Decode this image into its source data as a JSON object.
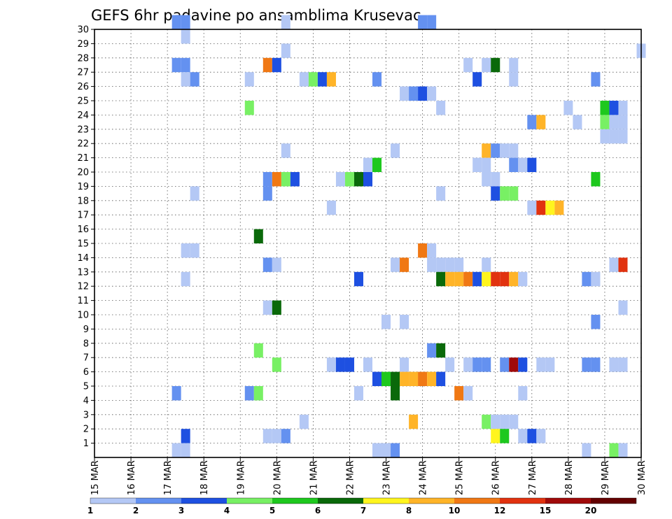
{
  "chart_data": {
    "type": "heatmap",
    "title": "GEFS 6hr padavine po ansamblima Krusevac",
    "xlabel": "",
    "ylabel": "",
    "x_tick_labels": [
      "15 MAR",
      "16 MAR",
      "17 MAR",
      "18 MAR",
      "19 MAR",
      "20 MAR",
      "21 MAR",
      "22 MAR",
      "23 MAR",
      "24 MAR",
      "25 MAR",
      "26 MAR",
      "27 MAR",
      "28 MAR",
      "29 MAR",
      "30 MAR"
    ],
    "y_tick_labels": [
      "1",
      "2",
      "3",
      "4",
      "5",
      "6",
      "7",
      "8",
      "9",
      "10",
      "11",
      "12",
      "13",
      "14",
      "15",
      "16",
      "17",
      "18",
      "19",
      "20",
      "21",
      "22",
      "23",
      "24",
      "25",
      "26",
      "27",
      "28",
      "29",
      "30"
    ],
    "grid": true,
    "legend_breaks": [
      "1",
      "2",
      "3",
      "4",
      "5",
      "6",
      "7",
      "8",
      "10",
      "12",
      "15",
      "20"
    ],
    "palette": [
      "#b4c8f5",
      "#6491f0",
      "#1e50e1",
      "#78f064",
      "#1ec81e",
      "#0a690a",
      "#fff51e",
      "#ffb428",
      "#f07814",
      "#e1320f",
      "#a00a0a",
      "#640000"
    ],
    "cells": [
      {
        "t": "17.25",
        "m": 30,
        "c": 1
      },
      {
        "t": "17.5",
        "m": 30,
        "c": 1
      },
      {
        "t": "20.25",
        "m": 30,
        "c": 0
      },
      {
        "t": "24.0",
        "m": 30,
        "c": 1
      },
      {
        "t": "24.25",
        "m": 30,
        "c": 1
      },
      {
        "t": "17.5",
        "m": 29,
        "c": 0
      },
      {
        "t": "20.25",
        "m": 28,
        "c": 0
      },
      {
        "t": "30.0",
        "m": 28,
        "c": 0
      },
      {
        "t": "17.25",
        "m": 27,
        "c": 1
      },
      {
        "t": "17.5",
        "m": 27,
        "c": 1
      },
      {
        "t": "19.75",
        "m": 27,
        "c": 8
      },
      {
        "t": "20.0",
        "m": 27,
        "c": 2
      },
      {
        "t": "25.25",
        "m": 27,
        "c": 0
      },
      {
        "t": "25.75",
        "m": 27,
        "c": 0
      },
      {
        "t": "26.0",
        "m": 27,
        "c": 5
      },
      {
        "t": "26.5",
        "m": 27,
        "c": 0
      },
      {
        "t": "17.5",
        "m": 26,
        "c": 0
      },
      {
        "t": "17.75",
        "m": 26,
        "c": 1
      },
      {
        "t": "19.25",
        "m": 26,
        "c": 0
      },
      {
        "t": "20.75",
        "m": 26,
        "c": 0
      },
      {
        "t": "21.0",
        "m": 26,
        "c": 3
      },
      {
        "t": "21.25",
        "m": 26,
        "c": 2
      },
      {
        "t": "21.5",
        "m": 26,
        "c": 7
      },
      {
        "t": "22.75",
        "m": 26,
        "c": 1
      },
      {
        "t": "25.5",
        "m": 26,
        "c": 2
      },
      {
        "t": "26.5",
        "m": 26,
        "c": 0
      },
      {
        "t": "28.75",
        "m": 26,
        "c": 1
      },
      {
        "t": "23.5",
        "m": 25,
        "c": 0
      },
      {
        "t": "23.75",
        "m": 25,
        "c": 1
      },
      {
        "t": "24.0",
        "m": 25,
        "c": 2
      },
      {
        "t": "24.25",
        "m": 25,
        "c": 0
      },
      {
        "t": "19.25",
        "m": 24,
        "c": 3
      },
      {
        "t": "24.5",
        "m": 24,
        "c": 0
      },
      {
        "t": "28.0",
        "m": 24,
        "c": 0
      },
      {
        "t": "29.0",
        "m": 24,
        "c": 4
      },
      {
        "t": "29.25",
        "m": 24,
        "c": 2
      },
      {
        "t": "29.5",
        "m": 24,
        "c": 0
      },
      {
        "t": "27.0",
        "m": 23,
        "c": 1
      },
      {
        "t": "27.25",
        "m": 23,
        "c": 7
      },
      {
        "t": "28.25",
        "m": 23,
        "c": 0
      },
      {
        "t": "29.0",
        "m": 23,
        "c": 3
      },
      {
        "t": "29.25",
        "m": 23,
        "c": 0
      },
      {
        "t": "29.5",
        "m": 23,
        "c": 0
      },
      {
        "t": "29.0",
        "m": 22,
        "c": 0
      },
      {
        "t": "29.25",
        "m": 22,
        "c": 0
      },
      {
        "t": "29.5",
        "m": 22,
        "c": 0
      },
      {
        "t": "20.25",
        "m": 21,
        "c": 0
      },
      {
        "t": "23.25",
        "m": 21,
        "c": 0
      },
      {
        "t": "25.75",
        "m": 21,
        "c": 7
      },
      {
        "t": "26.0",
        "m": 21,
        "c": 1
      },
      {
        "t": "26.25",
        "m": 21,
        "c": 0
      },
      {
        "t": "26.5",
        "m": 21,
        "c": 0
      },
      {
        "t": "22.5",
        "m": 20,
        "c": 0
      },
      {
        "t": "22.75",
        "m": 20,
        "c": 4
      },
      {
        "t": "25.5",
        "m": 20,
        "c": 0
      },
      {
        "t": "25.75",
        "m": 20,
        "c": 0
      },
      {
        "t": "26.5",
        "m": 20,
        "c": 1
      },
      {
        "t": "26.75",
        "m": 20,
        "c": 0
      },
      {
        "t": "27.0",
        "m": 20,
        "c": 2
      },
      {
        "t": "19.75",
        "m": 19,
        "c": 1
      },
      {
        "t": "20.0",
        "m": 19,
        "c": 8
      },
      {
        "t": "20.25",
        "m": 19,
        "c": 3
      },
      {
        "t": "20.5",
        "m": 19,
        "c": 2
      },
      {
        "t": "21.75",
        "m": 19,
        "c": 0
      },
      {
        "t": "22.0",
        "m": 19,
        "c": 3
      },
      {
        "t": "22.25",
        "m": 19,
        "c": 5
      },
      {
        "t": "22.5",
        "m": 19,
        "c": 2
      },
      {
        "t": "25.75",
        "m": 19,
        "c": 0
      },
      {
        "t": "26.0",
        "m": 19,
        "c": 0
      },
      {
        "t": "28.75",
        "m": 19,
        "c": 4
      },
      {
        "t": "17.75",
        "m": 18,
        "c": 0
      },
      {
        "t": "19.75",
        "m": 18,
        "c": 1
      },
      {
        "t": "24.5",
        "m": 18,
        "c": 0
      },
      {
        "t": "26.0",
        "m": 18,
        "c": 2
      },
      {
        "t": "26.25",
        "m": 18,
        "c": 3
      },
      {
        "t": "26.5",
        "m": 18,
        "c": 3
      },
      {
        "t": "21.5",
        "m": 17,
        "c": 0
      },
      {
        "t": "27.0",
        "m": 17,
        "c": 0
      },
      {
        "t": "27.25",
        "m": 17,
        "c": 9
      },
      {
        "t": "27.5",
        "m": 17,
        "c": 6
      },
      {
        "t": "27.75",
        "m": 17,
        "c": 7
      },
      {
        "t": "19.5",
        "m": 15,
        "c": 5
      },
      {
        "t": "17.5",
        "m": 14,
        "c": 0
      },
      {
        "t": "17.75",
        "m": 14,
        "c": 0
      },
      {
        "t": "24.0",
        "m": 14,
        "c": 8
      },
      {
        "t": "24.25",
        "m": 14,
        "c": 0
      },
      {
        "t": "19.75",
        "m": 13,
        "c": 1
      },
      {
        "t": "20.0",
        "m": 13,
        "c": 0
      },
      {
        "t": "23.25",
        "m": 13,
        "c": 0
      },
      {
        "t": "23.5",
        "m": 13,
        "c": 8
      },
      {
        "t": "24.25",
        "m": 13,
        "c": 0
      },
      {
        "t": "24.5",
        "m": 13,
        "c": 0
      },
      {
        "t": "24.75",
        "m": 13,
        "c": 0
      },
      {
        "t": "25.0",
        "m": 13,
        "c": 0
      },
      {
        "t": "25.75",
        "m": 13,
        "c": 0
      },
      {
        "t": "29.25",
        "m": 13,
        "c": 0
      },
      {
        "t": "29.5",
        "m": 13,
        "c": 9
      },
      {
        "t": "17.5",
        "m": 12,
        "c": 0
      },
      {
        "t": "22.25",
        "m": 12,
        "c": 2
      },
      {
        "t": "24.5",
        "m": 12,
        "c": 5
      },
      {
        "t": "24.75",
        "m": 12,
        "c": 7
      },
      {
        "t": "25.0",
        "m": 12,
        "c": 7
      },
      {
        "t": "25.25",
        "m": 12,
        "c": 8
      },
      {
        "t": "25.5",
        "m": 12,
        "c": 2
      },
      {
        "t": "25.75",
        "m": 12,
        "c": 6
      },
      {
        "t": "26.0",
        "m": 12,
        "c": 9
      },
      {
        "t": "26.25",
        "m": 12,
        "c": 9
      },
      {
        "t": "26.5",
        "m": 12,
        "c": 7
      },
      {
        "t": "26.75",
        "m": 12,
        "c": 0
      },
      {
        "t": "28.5",
        "m": 12,
        "c": 1
      },
      {
        "t": "28.75",
        "m": 12,
        "c": 0
      },
      {
        "t": "19.75",
        "m": 10,
        "c": 0
      },
      {
        "t": "20.0",
        "m": 10,
        "c": 5
      },
      {
        "t": "29.5",
        "m": 10,
        "c": 0
      },
      {
        "t": "23.0",
        "m": 9,
        "c": 0
      },
      {
        "t": "23.5",
        "m": 9,
        "c": 0
      },
      {
        "t": "28.75",
        "m": 9,
        "c": 1
      },
      {
        "t": "19.5",
        "m": 7,
        "c": 3
      },
      {
        "t": "24.25",
        "m": 7,
        "c": 1
      },
      {
        "t": "24.5",
        "m": 7,
        "c": 5
      },
      {
        "t": "20.0",
        "m": 6,
        "c": 3
      },
      {
        "t": "21.5",
        "m": 6,
        "c": 0
      },
      {
        "t": "21.75",
        "m": 6,
        "c": 2
      },
      {
        "t": "22.0",
        "m": 6,
        "c": 2
      },
      {
        "t": "22.5",
        "m": 6,
        "c": 0
      },
      {
        "t": "23.5",
        "m": 6,
        "c": 0
      },
      {
        "t": "24.75",
        "m": 6,
        "c": 0
      },
      {
        "t": "25.25",
        "m": 6,
        "c": 0
      },
      {
        "t": "25.5",
        "m": 6,
        "c": 1
      },
      {
        "t": "25.75",
        "m": 6,
        "c": 1
      },
      {
        "t": "26.25",
        "m": 6,
        "c": 1
      },
      {
        "t": "26.5",
        "m": 6,
        "c": 10
      },
      {
        "t": "26.75",
        "m": 6,
        "c": 2
      },
      {
        "t": "27.25",
        "m": 6,
        "c": 0
      },
      {
        "t": "27.5",
        "m": 6,
        "c": 0
      },
      {
        "t": "28.5",
        "m": 6,
        "c": 1
      },
      {
        "t": "28.75",
        "m": 6,
        "c": 1
      },
      {
        "t": "29.25",
        "m": 6,
        "c": 0
      },
      {
        "t": "29.5",
        "m": 6,
        "c": 0
      },
      {
        "t": "22.75",
        "m": 5,
        "c": 2
      },
      {
        "t": "23.0",
        "m": 5,
        "c": 4
      },
      {
        "t": "23.25",
        "m": 5,
        "c": 5
      },
      {
        "t": "23.5",
        "m": 5,
        "c": 7
      },
      {
        "t": "23.75",
        "m": 5,
        "c": 7
      },
      {
        "t": "24.0",
        "m": 5,
        "c": 8
      },
      {
        "t": "24.25",
        "m": 5,
        "c": 7
      },
      {
        "t": "24.5",
        "m": 5,
        "c": 2
      },
      {
        "t": "17.25",
        "m": 4,
        "c": 1
      },
      {
        "t": "19.25",
        "m": 4,
        "c": 1
      },
      {
        "t": "19.5",
        "m": 4,
        "c": 3
      },
      {
        "t": "22.25",
        "m": 4,
        "c": 0
      },
      {
        "t": "23.25",
        "m": 4,
        "c": 5
      },
      {
        "t": "25.0",
        "m": 4,
        "c": 8
      },
      {
        "t": "25.25",
        "m": 4,
        "c": 0
      },
      {
        "t": "26.75",
        "m": 4,
        "c": 0
      },
      {
        "t": "20.75",
        "m": 2,
        "c": 0
      },
      {
        "t": "23.75",
        "m": 2,
        "c": 7
      },
      {
        "t": "25.75",
        "m": 2,
        "c": 3
      },
      {
        "t": "26.0",
        "m": 2,
        "c": 0
      },
      {
        "t": "26.25",
        "m": 2,
        "c": 0
      },
      {
        "t": "26.5",
        "m": 2,
        "c": 0
      },
      {
        "t": "17.5",
        "m": 1,
        "c": 2
      },
      {
        "t": "19.75",
        "m": 1,
        "c": 0
      },
      {
        "t": "20.0",
        "m": 1,
        "c": 0
      },
      {
        "t": "20.25",
        "m": 1,
        "c": 1
      },
      {
        "t": "26.0",
        "m": 1,
        "c": 6
      },
      {
        "t": "26.25",
        "m": 1,
        "c": 4
      },
      {
        "t": "26.75",
        "m": 1,
        "c": 0
      },
      {
        "t": "27.0",
        "m": 1,
        "c": 2
      },
      {
        "t": "27.25",
        "m": 1,
        "c": 0
      },
      {
        "t": "17.25",
        "m": 0,
        "c": 0
      },
      {
        "t": "17.5",
        "m": 0,
        "c": 0
      },
      {
        "t": "22.75",
        "m": 0,
        "c": 0
      },
      {
        "t": "23.0",
        "m": 0,
        "c": 0
      },
      {
        "t": "23.25",
        "m": 0,
        "c": 1
      },
      {
        "t": "28.5",
        "m": 0,
        "c": 0
      },
      {
        "t": "29.25",
        "m": 0,
        "c": 3
      },
      {
        "t": "29.5",
        "m": 0,
        "c": 0
      }
    ]
  }
}
